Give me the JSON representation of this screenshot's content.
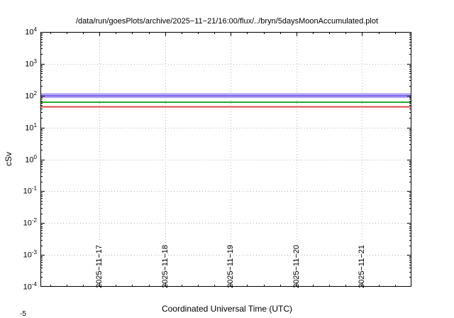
{
  "chart_data": {
    "type": "line",
    "title": "/data/run/goesPlots/archive/2025−11−21/16:00/flux/../bryn/5daysMoonAccumulated.plot",
    "xlabel": "Coordinated Universal Time (UTC)",
    "ylabel": "cSv",
    "y_scale": "log10",
    "ylim": [
      0.0001,
      10000
    ],
    "grid": true,
    "legend": "none",
    "x_tick_labels": [
      "2025−11−17",
      "2025−11−18",
      "2025−11−19",
      "2025−11−20",
      "2025−11−21"
    ],
    "x_tick_positions": [
      0.159,
      0.336,
      0.513,
      0.69,
      0.867
    ],
    "y_tick_exponents": [
      4,
      3,
      2,
      1,
      0,
      -1,
      -2,
      -3,
      -4
    ],
    "series": [
      {
        "name": "accumulated-band-violet",
        "type": "band",
        "color": "#b6a6f2",
        "y_min": 84,
        "y_max": 120
      },
      {
        "name": "accumulated-line-violet",
        "type": "line",
        "color": "#7b68ee",
        "y": 100
      },
      {
        "name": "accumulated-line-green",
        "type": "line",
        "color": "#28a832",
        "y": 62
      },
      {
        "name": "accumulated-line-red",
        "type": "line",
        "color": "#e04848",
        "y": 45
      }
    ]
  },
  "misc": {
    "clipped_label": "-5"
  }
}
